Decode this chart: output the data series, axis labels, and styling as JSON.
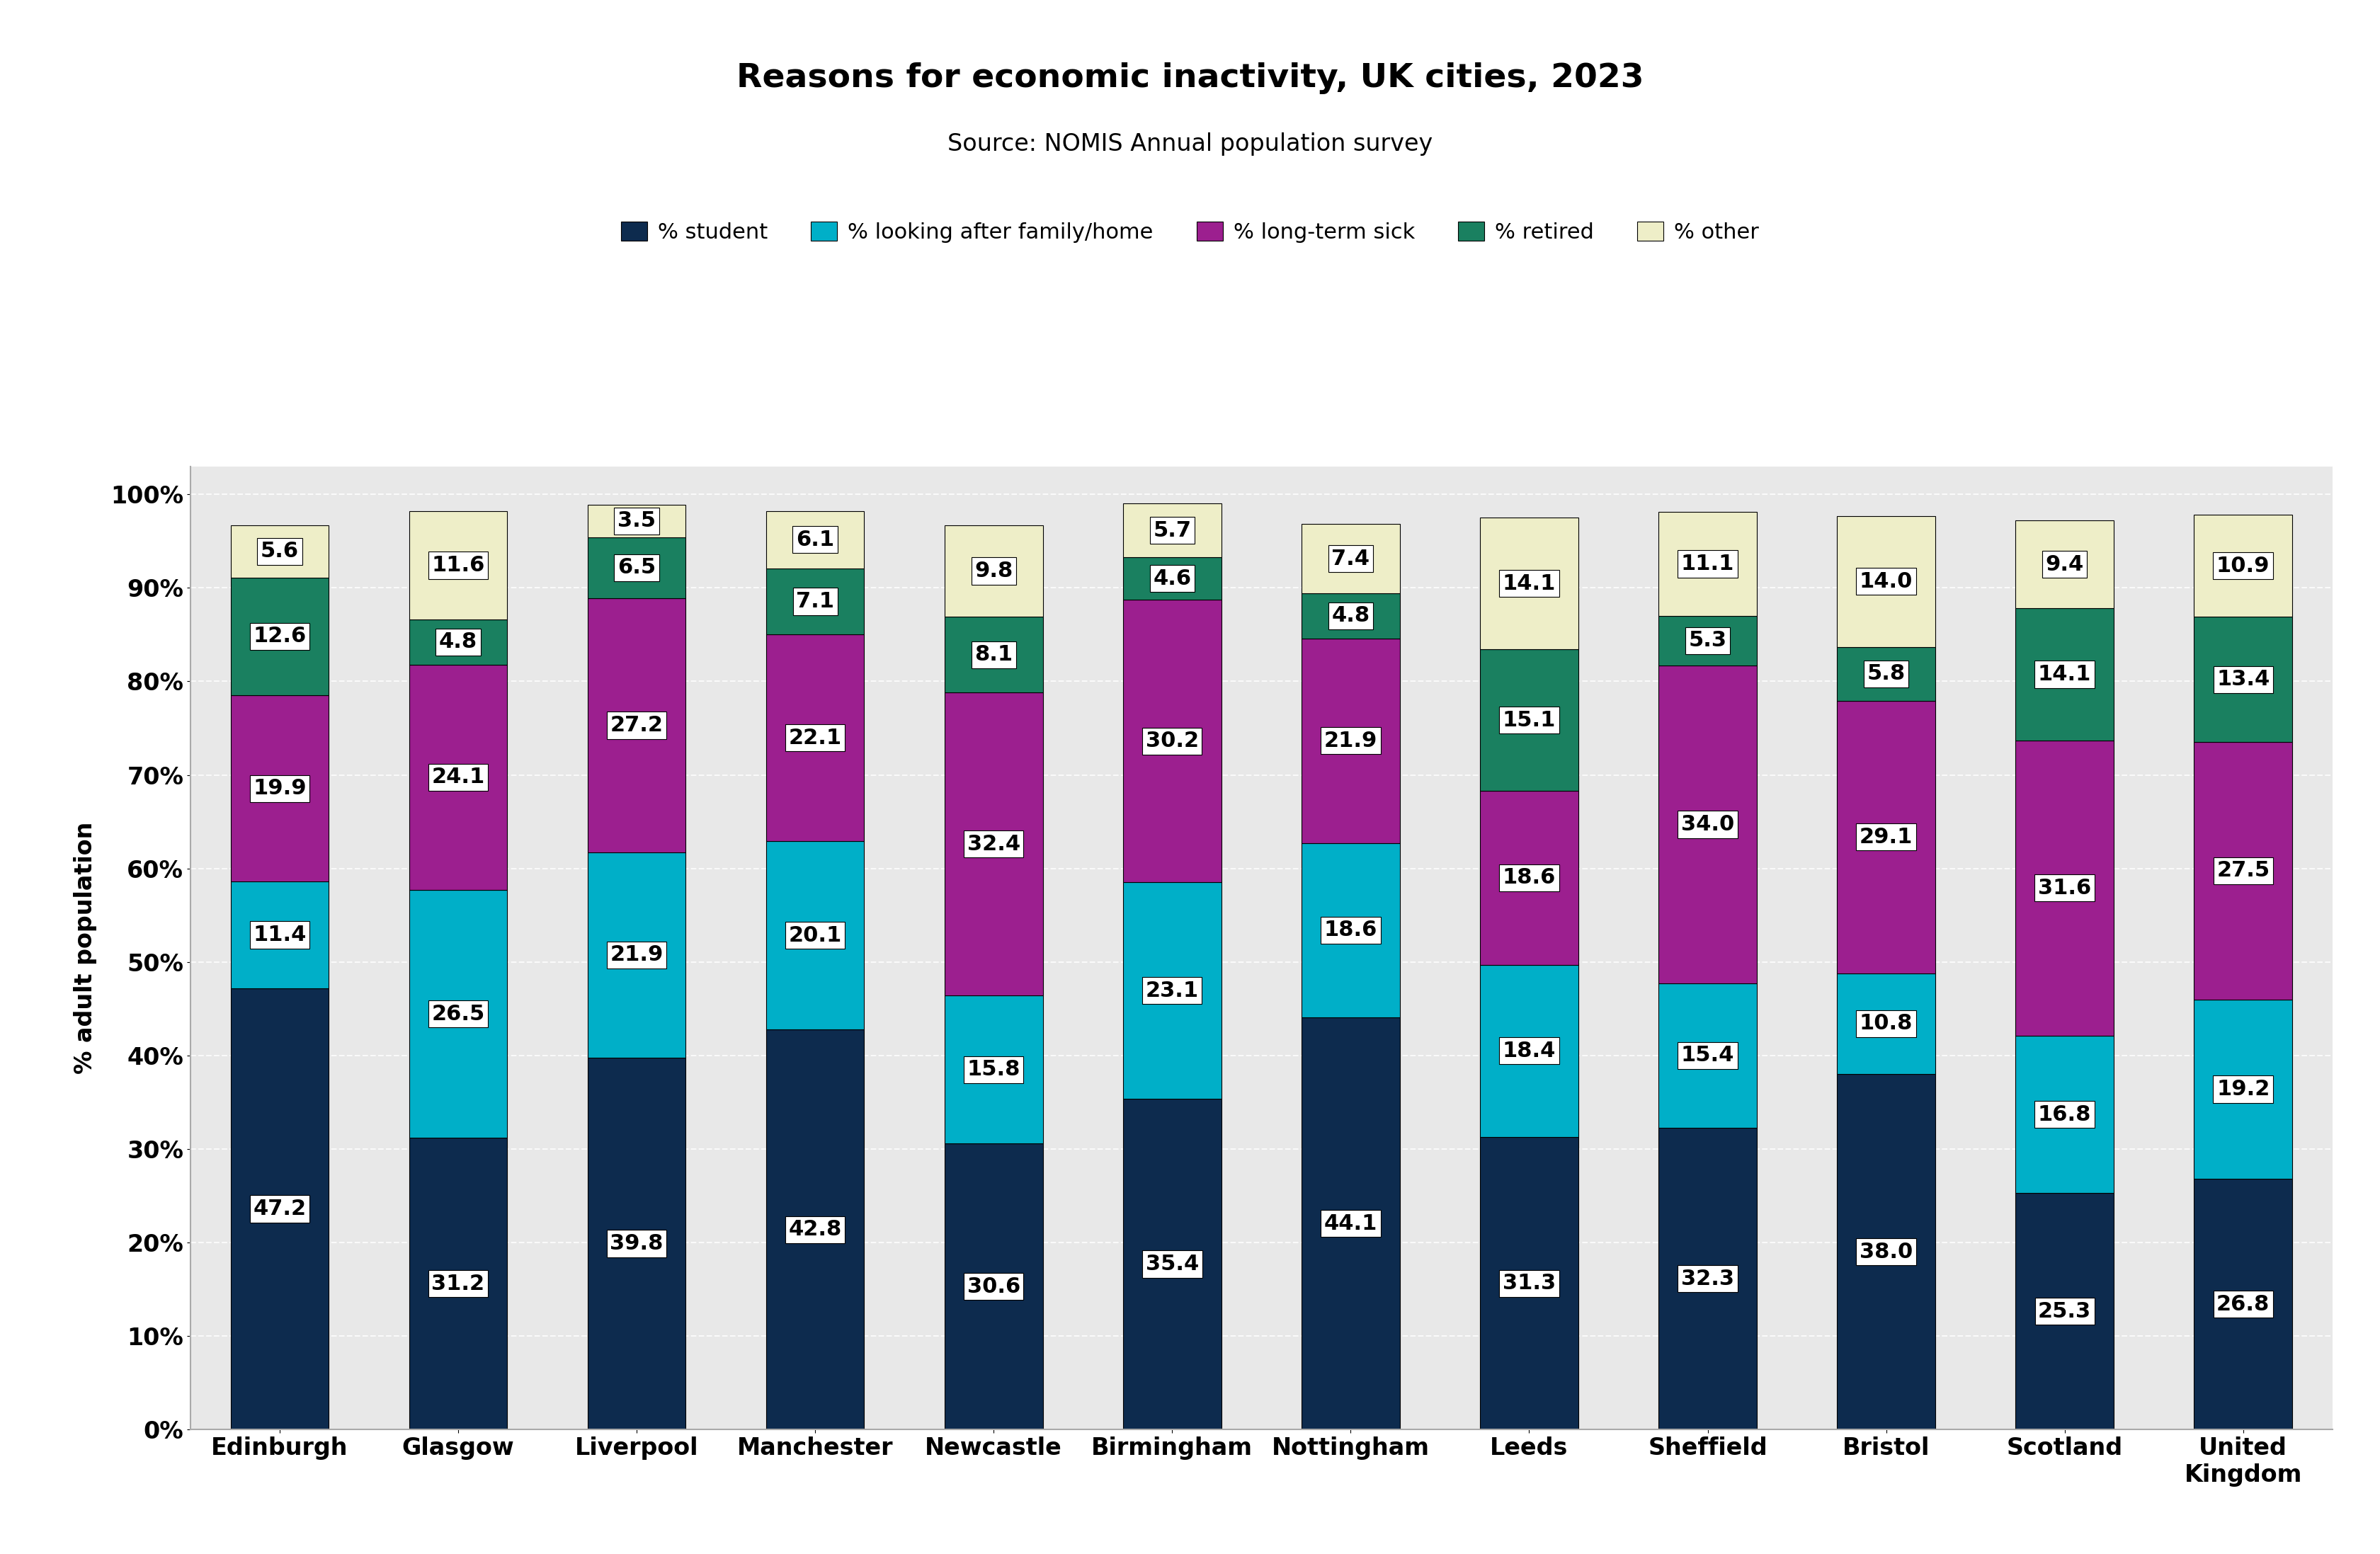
{
  "title": "Reasons for economic inactivity, UK cities, 2023",
  "subtitle": "Source: NOMIS Annual population survey",
  "ylabel": "% adult population",
  "categories": [
    "Edinburgh",
    "Glasgow",
    "Liverpool",
    "Manchester",
    "Newcastle",
    "Birmingham",
    "Nottingham",
    "Leeds",
    "Sheffield",
    "Bristol",
    "Scotland",
    "United\nKingdom"
  ],
  "series": {
    "student": [
      47.2,
      31.2,
      39.8,
      42.8,
      30.6,
      35.4,
      44.1,
      31.3,
      32.3,
      38.0,
      25.3,
      26.8
    ],
    "looking_after": [
      11.4,
      26.5,
      21.9,
      20.1,
      15.8,
      23.1,
      18.6,
      18.4,
      15.4,
      10.8,
      16.8,
      19.2
    ],
    "long_term_sick": [
      19.9,
      24.1,
      27.2,
      22.1,
      32.4,
      30.2,
      21.9,
      18.6,
      34.0,
      29.1,
      31.6,
      27.5
    ],
    "retired": [
      12.6,
      4.8,
      6.5,
      7.1,
      8.1,
      4.6,
      4.8,
      15.1,
      5.3,
      5.8,
      14.1,
      13.4
    ],
    "other": [
      5.6,
      11.6,
      3.5,
      6.1,
      9.8,
      5.7,
      7.4,
      14.1,
      11.1,
      14.0,
      9.4,
      10.9
    ]
  },
  "colors": {
    "student": "#0d2b4e",
    "looking_after": "#00afc8",
    "long_term_sick": "#9c1f8f",
    "retired": "#1a8060",
    "other": "#eeeec8"
  },
  "legend_labels": {
    "student": "% student",
    "looking_after": "% looking after family/home",
    "long_term_sick": "% long-term sick",
    "retired": "% retired",
    "other": "% other"
  },
  "yticks": [
    0,
    10,
    20,
    30,
    40,
    50,
    60,
    70,
    80,
    90,
    100
  ],
  "ytick_labels": [
    "0%",
    "10%",
    "20%",
    "30%",
    "40%",
    "50%",
    "60%",
    "70%",
    "80%",
    "90%",
    "100%"
  ],
  "background_color": "#e0e0e0",
  "plot_bg_color": "#e8e8e8",
  "bar_edge_color": "#000000",
  "label_bg_color": "white",
  "title_fontsize": 34,
  "subtitle_fontsize": 24,
  "tick_fontsize": 24,
  "label_fontsize": 22,
  "legend_fontsize": 22,
  "ylabel_fontsize": 24,
  "bar_width": 0.55
}
